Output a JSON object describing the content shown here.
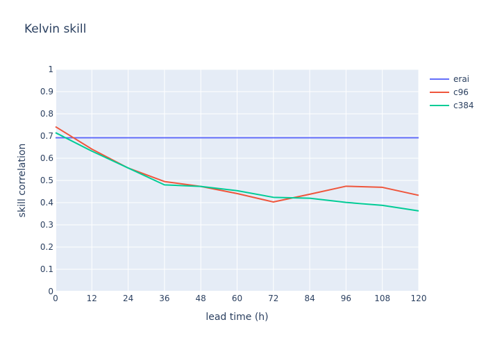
{
  "chart_data": {
    "type": "line",
    "title": "Kelvin skill",
    "xlabel": "lead time (h)",
    "ylabel": "skill correlation",
    "x": [
      0,
      12,
      24,
      36,
      48,
      60,
      72,
      84,
      96,
      108,
      120
    ],
    "xlim": [
      0,
      120
    ],
    "ylim": [
      0,
      1
    ],
    "xticks": [
      "0",
      "12",
      "24",
      "36",
      "48",
      "60",
      "72",
      "84",
      "96",
      "108",
      "120"
    ],
    "yticks": [
      "0",
      "0.1",
      "0.2",
      "0.3",
      "0.4",
      "0.5",
      "0.6",
      "0.7",
      "0.8",
      "0.9",
      "1"
    ],
    "grid": true,
    "legend_position": "top-right",
    "series": [
      {
        "name": "erai",
        "color": "#636efa",
        "values": [
          0.692,
          0.692,
          0.692,
          0.692,
          0.692,
          0.692,
          0.692,
          0.692,
          0.692,
          0.692,
          0.692
        ]
      },
      {
        "name": "c96",
        "color": "#ef553b",
        "values": [
          0.742,
          0.641,
          0.556,
          0.495,
          0.473,
          0.441,
          0.403,
          0.438,
          0.474,
          0.469,
          0.433
        ]
      },
      {
        "name": "c384",
        "color": "#00cc96",
        "values": [
          0.715,
          0.632,
          0.556,
          0.48,
          0.473,
          0.454,
          0.424,
          0.42,
          0.401,
          0.388,
          0.363
        ]
      }
    ]
  }
}
